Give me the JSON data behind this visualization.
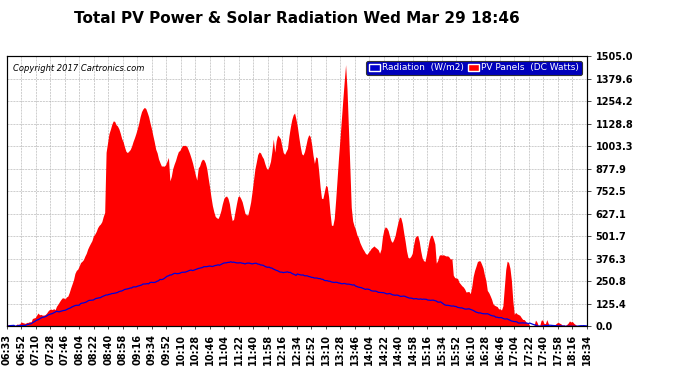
{
  "title": "Total PV Power & Solar Radiation Wed Mar 29 18:46",
  "copyright": "Copyright 2017 Cartronics.com",
  "legend_radiation": "Radiation  (W/m2)",
  "legend_pv": "PV Panels  (DC Watts)",
  "yticks": [
    0.0,
    125.4,
    250.8,
    376.3,
    501.7,
    627.1,
    752.5,
    877.9,
    1003.3,
    1128.8,
    1254.2,
    1379.6,
    1505.0
  ],
  "ymax": 1505.0,
  "ymin": 0.0,
  "bg_color": "#ffffff",
  "grid_color": "#aaaaaa",
  "fill_color": "#ff0000",
  "line_color": "#0000dd",
  "title_fontsize": 11,
  "tick_fontsize": 7,
  "xtick_labels": [
    "06:33",
    "06:52",
    "07:10",
    "07:28",
    "07:46",
    "08:04",
    "08:22",
    "08:40",
    "08:58",
    "09:16",
    "09:34",
    "09:52",
    "10:10",
    "10:28",
    "10:46",
    "11:04",
    "11:22",
    "11:40",
    "11:58",
    "12:16",
    "12:34",
    "12:52",
    "13:10",
    "13:28",
    "13:46",
    "14:04",
    "14:22",
    "14:40",
    "14:58",
    "15:16",
    "15:34",
    "15:52",
    "16:10",
    "16:28",
    "16:46",
    "17:04",
    "17:22",
    "17:40",
    "17:58",
    "18:16",
    "18:34"
  ],
  "num_points": 410
}
